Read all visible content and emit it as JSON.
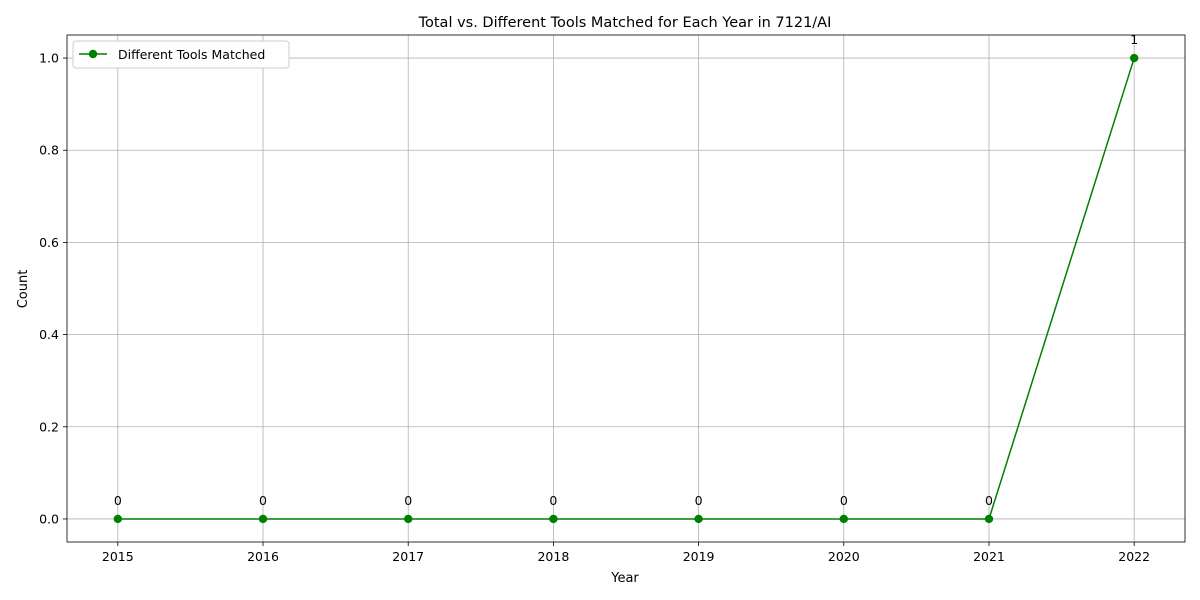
{
  "chart_data": {
    "type": "line",
    "title": "Total vs. Different Tools Matched for Each Year in 7121/AI",
    "xlabel": "Year",
    "ylabel": "Count",
    "x": [
      2015,
      2016,
      2017,
      2018,
      2019,
      2020,
      2021,
      2022
    ],
    "xlim": [
      2014.65,
      2022.35
    ],
    "ylim": [
      -0.05,
      1.05
    ],
    "yticks": [
      0.0,
      0.2,
      0.4,
      0.6,
      0.8,
      1.0
    ],
    "ytick_labels": [
      "0.0",
      "0.2",
      "0.4",
      "0.6",
      "0.8",
      "1.0"
    ],
    "xtick_labels": [
      "2015",
      "2016",
      "2017",
      "2018",
      "2019",
      "2020",
      "2021",
      "2022"
    ],
    "grid": true,
    "legend_position": "upper-left",
    "series": [
      {
        "name": "Different Tools Matched",
        "color": "#008000",
        "marker": "circle",
        "values": [
          0,
          0,
          0,
          0,
          0,
          0,
          0,
          1
        ],
        "data_labels": [
          "0",
          "0",
          "0",
          "0",
          "0",
          "0",
          "0",
          "1"
        ]
      }
    ]
  }
}
